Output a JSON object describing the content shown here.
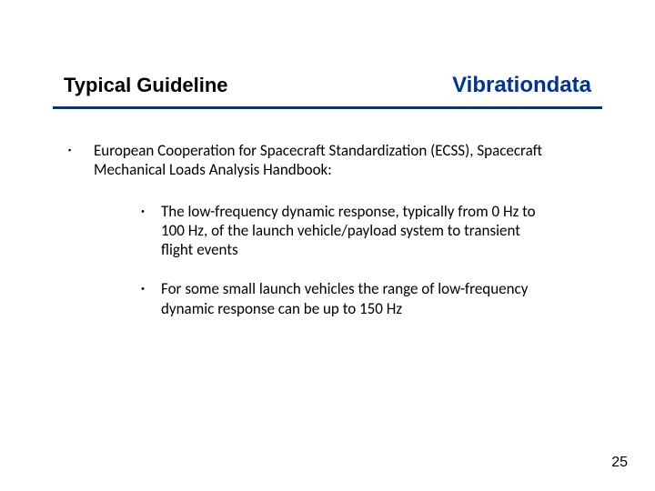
{
  "header": {
    "title": "Typical Guideline",
    "brand": "Vibrationdata",
    "title_color": "#000000",
    "brand_color": "#003399",
    "rule_color": "#003399"
  },
  "body": {
    "level1": {
      "text": "European Cooperation for Spacecraft Standardization (ECSS), Spacecraft Mechanical Loads Analysis Handbook:"
    },
    "level2": [
      {
        "text": "The low-frequency dynamic response, typically from 0 Hz to 100 Hz, of the launch vehicle/payload system to transient flight events"
      },
      {
        "text": "For some small launch vehicles the range of low-frequency dynamic response can be up to 150 Hz"
      }
    ]
  },
  "footer": {
    "page_number": "25"
  },
  "colors": {
    "background": "#ffffff",
    "text": "#000000"
  }
}
